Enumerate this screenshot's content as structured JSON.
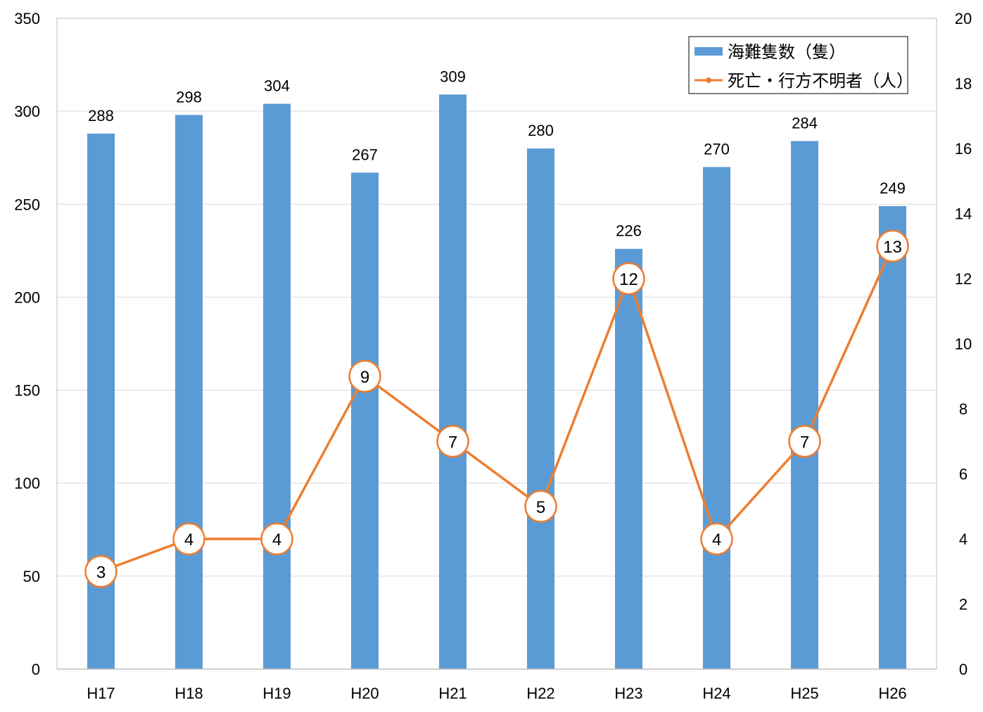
{
  "chart_data": {
    "type": "bar+line",
    "categories": [
      "H17",
      "H18",
      "H19",
      "H20",
      "H21",
      "H22",
      "H23",
      "H24",
      "H25",
      "H26"
    ],
    "series": [
      {
        "name": "海難隻数（隻）",
        "type": "bar",
        "axis": "left",
        "color": "#5b9bd5",
        "values": [
          288,
          298,
          304,
          267,
          309,
          280,
          226,
          270,
          284,
          249
        ]
      },
      {
        "name": "死亡・行方不明者（人）",
        "type": "line",
        "axis": "right",
        "color": "#ed7d31",
        "values": [
          3,
          4,
          4,
          9,
          7,
          5,
          12,
          4,
          7,
          13
        ]
      }
    ],
    "y_left": {
      "min": 0,
      "max": 350,
      "step": 50
    },
    "y_right": {
      "min": 0,
      "max": 20,
      "step": 2
    },
    "grid": true,
    "legend_position": "top-right",
    "title": "",
    "xlabel": "",
    "ylabel": ""
  }
}
